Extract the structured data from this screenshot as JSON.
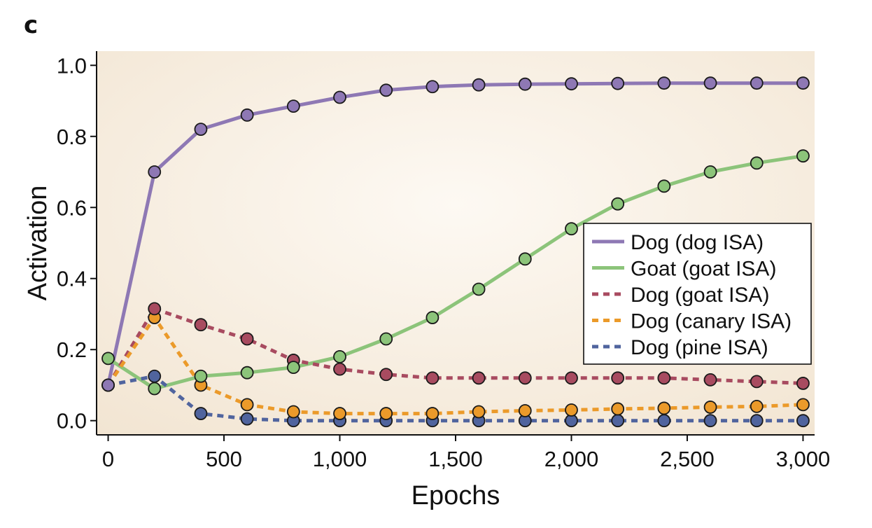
{
  "panel_label": "c",
  "chart_data": {
    "type": "line",
    "title": "",
    "xlabel": "Epochs",
    "ylabel": "Activation",
    "xlim": [
      -50,
      3050
    ],
    "ylim": [
      -0.04,
      1.04
    ],
    "x_ticks": [
      0,
      500,
      1000,
      1500,
      2000,
      2500,
      3000
    ],
    "x_tick_labels": [
      "0",
      "500",
      "1,000",
      "1,500",
      "2,000",
      "2,500",
      "3,000"
    ],
    "y_ticks": [
      0.0,
      0.2,
      0.4,
      0.6,
      0.8,
      1.0
    ],
    "y_tick_labels": [
      "0.0",
      "0.2",
      "0.4",
      "0.6",
      "0.8",
      "1.0"
    ],
    "grid": false,
    "legend_position": "center-right",
    "x": [
      0,
      200,
      400,
      600,
      800,
      1000,
      1200,
      1400,
      1600,
      1800,
      2000,
      2200,
      2400,
      2600,
      2800,
      3000
    ],
    "series": [
      {
        "name": "Dog (dog ISA)",
        "color": "#8e78b4",
        "style": "solid",
        "values": [
          0.1,
          0.7,
          0.82,
          0.86,
          0.885,
          0.91,
          0.93,
          0.94,
          0.945,
          0.947,
          0.948,
          0.949,
          0.95,
          0.95,
          0.95,
          0.95
        ]
      },
      {
        "name": "Goat (goat ISA)",
        "color": "#8cc47a",
        "style": "solid",
        "values": [
          0.175,
          0.09,
          0.125,
          0.135,
          0.15,
          0.18,
          0.23,
          0.29,
          0.37,
          0.455,
          0.54,
          0.61,
          0.66,
          0.7,
          0.725,
          0.745
        ]
      },
      {
        "name": "Dog (goat ISA)",
        "color": "#a84b60",
        "style": "dashed",
        "values": [
          0.1,
          0.315,
          0.27,
          0.23,
          0.17,
          0.145,
          0.13,
          0.12,
          0.12,
          0.12,
          0.12,
          0.12,
          0.12,
          0.115,
          0.11,
          0.105
        ]
      },
      {
        "name": "Dog (canary ISA)",
        "color": "#eb9a2a",
        "style": "dashed",
        "values": [
          0.1,
          0.29,
          0.1,
          0.045,
          0.025,
          0.02,
          0.02,
          0.02,
          0.025,
          0.028,
          0.03,
          0.033,
          0.035,
          0.038,
          0.04,
          0.045
        ]
      },
      {
        "name": "Dog (pine ISA)",
        "color": "#50649e",
        "style": "dashed",
        "values": [
          0.1,
          0.125,
          0.02,
          0.005,
          0.0,
          0.0,
          0.0,
          0.0,
          0.0,
          0.0,
          0.0,
          0.0,
          0.0,
          0.0,
          0.0,
          0.0
        ]
      }
    ],
    "background_gradient": [
      "#f1e3cf",
      "#fdf9f3"
    ]
  }
}
